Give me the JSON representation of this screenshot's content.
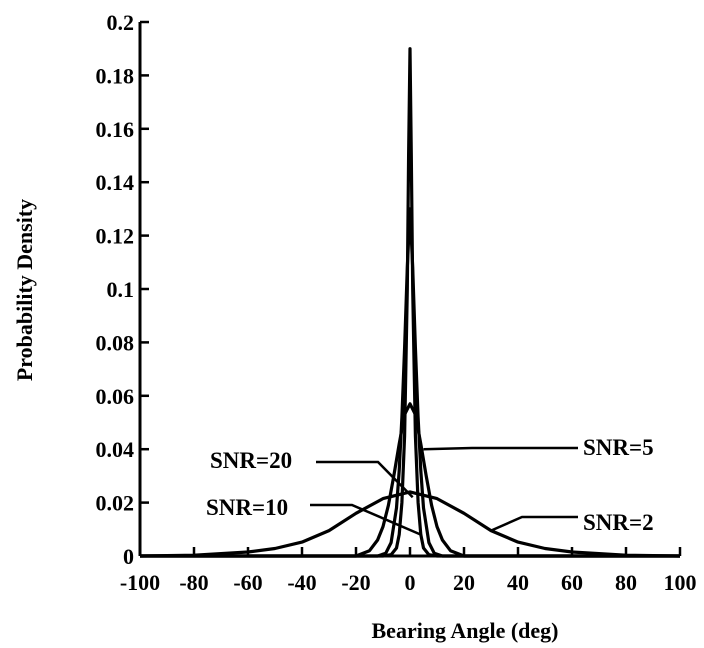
{
  "chart_data": {
    "type": "line",
    "title": "",
    "xlabel": "Bearing Angle (deg)",
    "ylabel": "Probability Density",
    "xlim": [
      -100,
      100
    ],
    "ylim": [
      0,
      0.2
    ],
    "xticks": [
      -100,
      -80,
      -60,
      -40,
      -20,
      0,
      20,
      40,
      60,
      80,
      100
    ],
    "xtick_labels": [
      "-100",
      "-80",
      "-60",
      "-40",
      "-20",
      "0",
      "20",
      "40",
      "60",
      "80",
      "100"
    ],
    "yticks": [
      0,
      0.02,
      0.04,
      0.06,
      0.08,
      0.1,
      0.12,
      0.14,
      0.16,
      0.18,
      0.2
    ],
    "ytick_labels": [
      "0",
      "0.02",
      "0.04",
      "0.06",
      "0.08",
      "0.1",
      "0.12",
      "0.14",
      "0.16",
      "0.18",
      "0.2"
    ],
    "grid": false,
    "line_color": "#000000",
    "series": [
      {
        "name": "SNR=20",
        "peak_x": 0,
        "peak_y": 0.19,
        "x": [
          -100,
          -10,
          -7,
          -5,
          -4,
          -3,
          -2,
          -1,
          -0.5,
          0,
          0.5,
          1,
          2,
          3,
          4,
          5,
          7,
          10,
          100
        ],
        "y": [
          0,
          0,
          0.0005,
          0.003,
          0.008,
          0.02,
          0.045,
          0.1,
          0.15,
          0.19,
          0.15,
          0.1,
          0.045,
          0.02,
          0.008,
          0.003,
          0.0005,
          0,
          0
        ]
      },
      {
        "name": "SNR=10",
        "peak_x": 0,
        "peak_y": 0.13,
        "x": [
          -100,
          -12,
          -9,
          -7,
          -5,
          -4,
          -3,
          -2,
          -1,
          0,
          1,
          2,
          3,
          4,
          5,
          7,
          9,
          12,
          100
        ],
        "y": [
          0,
          0,
          0.001,
          0.005,
          0.018,
          0.032,
          0.052,
          0.078,
          0.108,
          0.13,
          0.108,
          0.078,
          0.052,
          0.032,
          0.018,
          0.005,
          0.001,
          0,
          0
        ]
      },
      {
        "name": "SNR=5",
        "peak_x": 0,
        "peak_y": 0.057,
        "x": [
          -100,
          -20,
          -15,
          -12,
          -10,
          -8,
          -6,
          -4,
          -2,
          0,
          2,
          4,
          6,
          8,
          10,
          12,
          15,
          20,
          100
        ],
        "y": [
          0,
          0,
          0.002,
          0.006,
          0.011,
          0.019,
          0.03,
          0.042,
          0.053,
          0.057,
          0.053,
          0.042,
          0.03,
          0.019,
          0.011,
          0.006,
          0.002,
          0,
          0
        ]
      },
      {
        "name": "SNR=2",
        "peak_x": 0,
        "peak_y": 0.024,
        "x": [
          -100,
          -80,
          -60,
          -50,
          -40,
          -30,
          -20,
          -10,
          0,
          10,
          20,
          30,
          40,
          50,
          60,
          80,
          100
        ],
        "y": [
          0,
          0.0003,
          0.0015,
          0.0028,
          0.0052,
          0.0095,
          0.016,
          0.0215,
          0.024,
          0.0215,
          0.016,
          0.0095,
          0.0052,
          0.0028,
          0.0015,
          0.0003,
          0
        ]
      }
    ],
    "annotations": [
      {
        "text": "SNR=20",
        "series": "SNR=20",
        "target_x": 1,
        "target_y": 0.022
      },
      {
        "text": "SNR=10",
        "series": "SNR=10",
        "target_x": 4,
        "target_y": 0.008
      },
      {
        "text": "SNR=5",
        "series": "SNR=5",
        "target_x": 5,
        "target_y": 0.04
      },
      {
        "text": "SNR=2",
        "series": "SNR=2",
        "target_x": 30,
        "target_y": 0.0095
      }
    ]
  }
}
